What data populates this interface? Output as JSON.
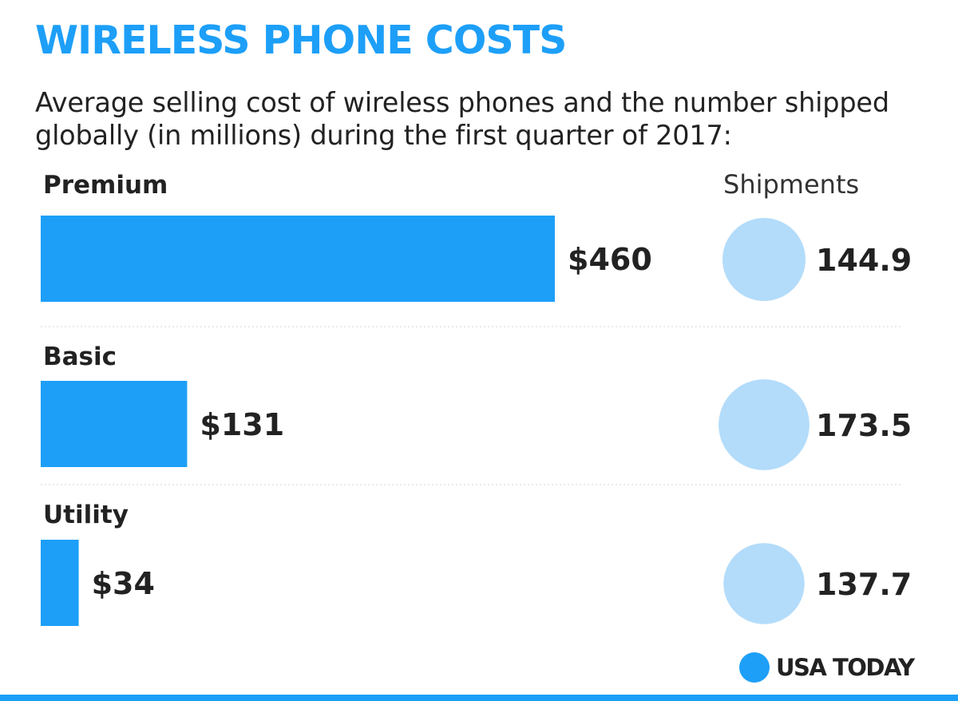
{
  "colors": {
    "accent": "#1d9ff8",
    "bubble": "#b3dcfa",
    "text": "#222222",
    "divider": "#d0d0d0"
  },
  "chart_data": {
    "type": "bar",
    "title": "WIRELESS PHONE COSTS",
    "subtitle": "Average selling cost of wireless phones and the number shipped globally (in millions) during the first quarter of 2017:",
    "categories": [
      "Premium",
      "Basic",
      "Utility"
    ],
    "series": [
      {
        "values": [
          460,
          131,
          34
        ],
        "labels": [
          "$460",
          "$131",
          "$34"
        ]
      },
      {
        "name": "Shipments",
        "values": [
          144.9,
          173.5,
          137.7
        ],
        "labels": [
          "144.9",
          "173.5",
          "137.7"
        ]
      }
    ],
    "shipments_header": "Shipments"
  },
  "branding": {
    "logo_text": "USA TODAY",
    "logo_icon": "circle-dot-icon"
  }
}
